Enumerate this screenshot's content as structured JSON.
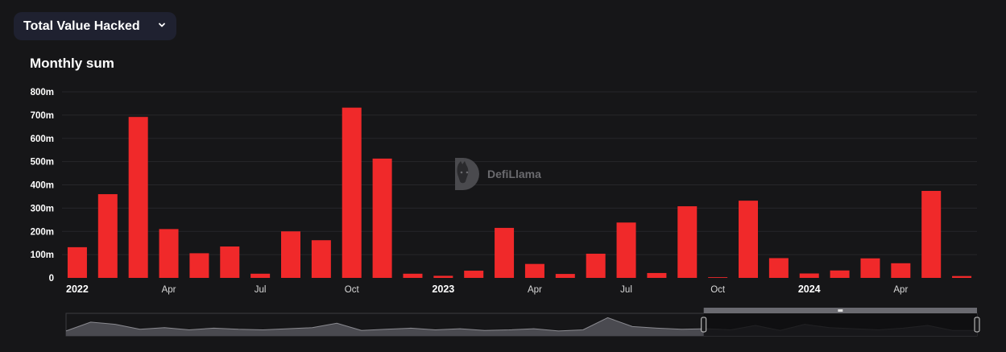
{
  "header": {
    "metric_label": "Total Value Hacked",
    "dropdown_icon": "chevron-down-icon"
  },
  "chart_title": "Monthly sum",
  "watermark": {
    "text": "DefiLlama",
    "icon": "llama-logo-icon"
  },
  "colors": {
    "background": "#161618",
    "bar": "#f0292a",
    "grid": "#26262a",
    "select_bg": "#1f2130"
  },
  "chart_data": {
    "type": "bar",
    "title": "Monthly sum",
    "xlabel": "",
    "ylabel": "",
    "ylim": [
      0,
      800
    ],
    "y_unit": "m",
    "y_ticks": [
      "0",
      "100m",
      "200m",
      "300m",
      "400m",
      "500m",
      "600m",
      "700m",
      "800m"
    ],
    "grid": true,
    "categories": [
      "2022-01",
      "2022-02",
      "2022-03",
      "2022-04",
      "2022-05",
      "2022-06",
      "2022-07",
      "2022-08",
      "2022-09",
      "2022-10",
      "2022-11",
      "2022-12",
      "2023-01",
      "2023-02",
      "2023-03",
      "2023-04",
      "2023-05",
      "2023-06",
      "2023-07",
      "2023-08",
      "2023-09",
      "2023-10",
      "2023-11",
      "2023-12",
      "2024-01",
      "2024-02",
      "2024-03",
      "2024-04",
      "2024-05",
      "2024-06"
    ],
    "values": [
      132,
      360,
      692,
      210,
      106,
      135,
      18,
      200,
      162,
      732,
      513,
      18,
      9,
      31,
      215,
      60,
      17,
      104,
      238,
      21,
      308,
      3,
      332,
      85,
      19,
      32,
      84,
      63,
      374,
      8
    ],
    "x_tick_labels": [
      {
        "index": 0,
        "label": "2022",
        "bold": true
      },
      {
        "index": 3,
        "label": "Apr",
        "bold": false
      },
      {
        "index": 6,
        "label": "Jul",
        "bold": false
      },
      {
        "index": 9,
        "label": "Oct",
        "bold": false
      },
      {
        "index": 12,
        "label": "2023",
        "bold": true
      },
      {
        "index": 15,
        "label": "Apr",
        "bold": false
      },
      {
        "index": 18,
        "label": "Jul",
        "bold": false
      },
      {
        "index": 21,
        "label": "Oct",
        "bold": false
      },
      {
        "index": 24,
        "label": "2024",
        "bold": true
      },
      {
        "index": 27,
        "label": "Apr",
        "bold": false
      }
    ],
    "data_zoom": {
      "start_percent": 70,
      "end_percent": 100,
      "overview_values": [
        30,
        110,
        90,
        45,
        60,
        40,
        55,
        45,
        40,
        50,
        60,
        100,
        35,
        45,
        55,
        40,
        50,
        35,
        40,
        50,
        30,
        40,
        150,
        70,
        55,
        45,
        50,
        40,
        80,
        35,
        90,
        60,
        50,
        40,
        55,
        80,
        35,
        35
      ]
    }
  }
}
